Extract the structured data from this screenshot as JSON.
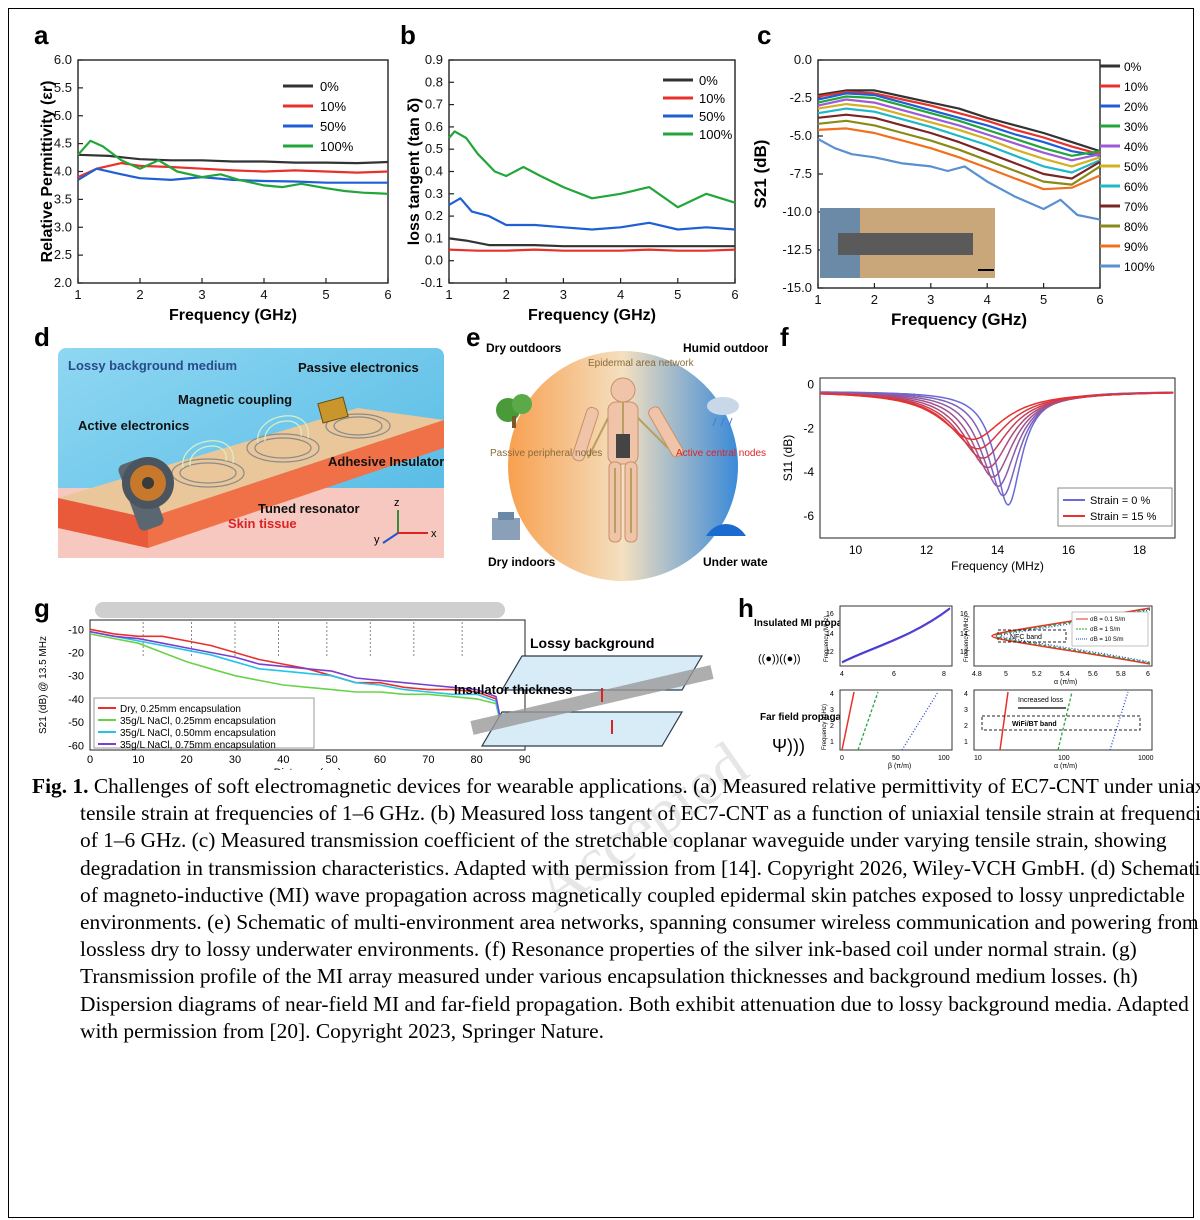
{
  "colors": {
    "black": "#333333",
    "red": "#e8312a",
    "blue": "#1e5fd6",
    "green": "#22a63a",
    "purple": "#7a3fd0"
  },
  "panels": {
    "a": {
      "label": "a"
    },
    "b": {
      "label": "b"
    },
    "c": {
      "label": "c"
    },
    "d": {
      "label": "d"
    },
    "e": {
      "label": "e"
    },
    "f": {
      "label": "f"
    },
    "g": {
      "label": "g"
    },
    "h": {
      "label": "h"
    }
  },
  "chart_data": [
    {
      "panel": "a",
      "type": "line",
      "xlabel": "Frequency (GHz)",
      "ylabel": "Relative Permittivity (εr)",
      "xlim": [
        1,
        6
      ],
      "ylim": [
        2.0,
        6.0
      ],
      "xticks": [
        "1",
        "2",
        "3",
        "4",
        "5",
        "6"
      ],
      "yticks": [
        "2.0",
        "2.5",
        "3.0",
        "3.5",
        "4.0",
        "4.5",
        "5.0",
        "5.5",
        "6.0"
      ],
      "legend": "top-right",
      "series": [
        {
          "name": "0%",
          "color": "#333333",
          "x": [
            1,
            1.5,
            2,
            2.5,
            3,
            3.5,
            4,
            4.5,
            5,
            5.5,
            6
          ],
          "y": [
            4.3,
            4.28,
            4.22,
            4.2,
            4.2,
            4.18,
            4.18,
            4.16,
            4.16,
            4.15,
            4.17
          ]
        },
        {
          "name": "10%",
          "color": "#e8312a",
          "x": [
            1,
            1.3,
            1.7,
            2,
            2.5,
            3,
            3.5,
            4,
            4.5,
            5,
            5.5,
            6
          ],
          "y": [
            3.9,
            4.05,
            4.15,
            4.1,
            4.08,
            4.05,
            4.02,
            4.0,
            4.02,
            4.0,
            3.98,
            4.0
          ]
        },
        {
          "name": "50%",
          "color": "#1e5fd6",
          "x": [
            1,
            1.3,
            1.7,
            2,
            2.5,
            3,
            3.5,
            4,
            4.5,
            5,
            5.5,
            6
          ],
          "y": [
            3.85,
            4.05,
            3.95,
            3.88,
            3.85,
            3.9,
            3.85,
            3.83,
            3.82,
            3.8,
            3.8,
            3.8
          ]
        },
        {
          "name": "100%",
          "color": "#22a63a",
          "x": [
            1,
            1.2,
            1.4,
            1.7,
            2,
            2.3,
            2.6,
            3,
            3.3,
            3.6,
            4,
            4.3,
            4.6,
            5,
            5.3,
            5.6,
            6
          ],
          "y": [
            4.3,
            4.55,
            4.45,
            4.2,
            4.05,
            4.2,
            4.0,
            3.9,
            3.95,
            3.85,
            3.75,
            3.72,
            3.78,
            3.7,
            3.65,
            3.62,
            3.6
          ]
        }
      ]
    },
    {
      "panel": "b",
      "type": "line",
      "xlabel": "Frequency (GHz)",
      "ylabel": "loss tangent (tan δ)",
      "xlim": [
        1,
        6
      ],
      "ylim": [
        -0.1,
        0.9
      ],
      "xticks": [
        "1",
        "2",
        "3",
        "4",
        "5",
        "6"
      ],
      "yticks": [
        "-0.1",
        "0.0",
        "0.1",
        "0.2",
        "0.3",
        "0.4",
        "0.5",
        "0.6",
        "0.7",
        "0.8",
        "0.9"
      ],
      "legend": "top-right",
      "series": [
        {
          "name": "0%",
          "color": "#333333",
          "x": [
            1,
            1.3,
            1.7,
            2,
            2.5,
            3,
            3.5,
            4,
            4.5,
            5,
            5.5,
            6
          ],
          "y": [
            0.1,
            0.09,
            0.07,
            0.07,
            0.07,
            0.065,
            0.065,
            0.065,
            0.065,
            0.065,
            0.065,
            0.065
          ]
        },
        {
          "name": "10%",
          "color": "#e8312a",
          "x": [
            1,
            1.5,
            2,
            2.5,
            3,
            3.5,
            4,
            4.5,
            5,
            5.5,
            6
          ],
          "y": [
            0.05,
            0.045,
            0.045,
            0.05,
            0.045,
            0.045,
            0.045,
            0.05,
            0.045,
            0.045,
            0.05
          ]
        },
        {
          "name": "50%",
          "color": "#1e5fd6",
          "x": [
            1,
            1.2,
            1.4,
            1.7,
            2,
            2.5,
            3,
            3.5,
            4,
            4.5,
            5,
            5.5,
            6
          ],
          "y": [
            0.25,
            0.28,
            0.22,
            0.2,
            0.16,
            0.16,
            0.15,
            0.14,
            0.15,
            0.17,
            0.14,
            0.15,
            0.14
          ]
        },
        {
          "name": "100%",
          "color": "#22a63a",
          "x": [
            1,
            1.1,
            1.3,
            1.5,
            1.8,
            2,
            2.3,
            2.6,
            3,
            3.5,
            4,
            4.5,
            5,
            5.5,
            6
          ],
          "y": [
            0.55,
            0.58,
            0.55,
            0.48,
            0.4,
            0.38,
            0.42,
            0.38,
            0.33,
            0.28,
            0.3,
            0.33,
            0.24,
            0.3,
            0.26
          ]
        }
      ]
    },
    {
      "panel": "c",
      "type": "line",
      "xlabel": "Frequency (GHz)",
      "ylabel": "S21 (dB)",
      "xlim": [
        1,
        6
      ],
      "ylim": [
        -15.0,
        0.0
      ],
      "xticks": [
        "1",
        "2",
        "3",
        "4",
        "5",
        "6"
      ],
      "yticks": [
        "-15.0",
        "-12.5",
        "-10.0",
        "-7.5",
        "-5.0",
        "-2.5",
        "0.0"
      ],
      "legend": "right",
      "series": [
        {
          "name": "0%",
          "color": "#333333",
          "x": [
            1,
            1.5,
            2,
            2.5,
            3,
            3.5,
            4,
            4.5,
            5,
            5.5,
            6
          ],
          "y": [
            -2.3,
            -2.0,
            -2.0,
            -2.4,
            -2.8,
            -3.2,
            -3.8,
            -4.3,
            -4.8,
            -5.4,
            -6.0
          ]
        },
        {
          "name": "10%",
          "color": "#e8312a",
          "x": [
            1,
            1.5,
            2,
            2.5,
            3,
            3.5,
            4,
            4.5,
            5,
            5.5,
            6
          ],
          "y": [
            -2.4,
            -2.1,
            -2.2,
            -2.6,
            -3.0,
            -3.5,
            -4.0,
            -4.6,
            -5.1,
            -5.7,
            -6.2
          ]
        },
        {
          "name": "20%",
          "color": "#1e5fd6",
          "x": [
            1,
            1.5,
            2,
            2.5,
            3,
            3.5,
            4,
            4.5,
            5,
            5.5,
            6
          ],
          "y": [
            -2.6,
            -2.2,
            -2.3,
            -2.8,
            -3.3,
            -3.8,
            -4.3,
            -4.9,
            -5.4,
            -6.0,
            -6.3
          ]
        },
        {
          "name": "30%",
          "color": "#22a63a",
          "x": [
            1,
            1.5,
            2,
            2.5,
            3,
            3.5,
            4,
            4.5,
            5,
            5.5,
            6
          ],
          "y": [
            -2.8,
            -2.4,
            -2.5,
            -3.0,
            -3.5,
            -4.0,
            -4.6,
            -5.2,
            -5.8,
            -6.3,
            -6.0
          ]
        },
        {
          "name": "40%",
          "color": "#a05ad8",
          "x": [
            1,
            1.5,
            2,
            2.5,
            3,
            3.5,
            4,
            4.5,
            5,
            5.5,
            6
          ],
          "y": [
            -3.0,
            -2.6,
            -2.8,
            -3.3,
            -3.8,
            -4.3,
            -4.9,
            -5.5,
            -6.1,
            -6.6,
            -6.2
          ]
        },
        {
          "name": "50%",
          "color": "#d4b020",
          "x": [
            1,
            1.5,
            2,
            2.5,
            3,
            3.5,
            4,
            4.5,
            5,
            5.5,
            6
          ],
          "y": [
            -3.2,
            -2.9,
            -3.1,
            -3.6,
            -4.1,
            -4.6,
            -5.2,
            -5.9,
            -6.5,
            -7.0,
            -6.4
          ]
        },
        {
          "name": "60%",
          "color": "#1fb8c8",
          "x": [
            1,
            1.5,
            2,
            2.5,
            3,
            3.5,
            4,
            4.5,
            5,
            5.5,
            6
          ],
          "y": [
            -3.5,
            -3.2,
            -3.4,
            -3.9,
            -4.4,
            -5.0,
            -5.6,
            -6.3,
            -7.0,
            -7.4,
            -6.6
          ]
        },
        {
          "name": "70%",
          "color": "#7a2424",
          "x": [
            1,
            1.5,
            2,
            2.5,
            3,
            3.5,
            4,
            4.5,
            5,
            5.5,
            6
          ],
          "y": [
            -3.8,
            -3.6,
            -3.8,
            -4.3,
            -4.8,
            -5.4,
            -6.1,
            -6.8,
            -7.5,
            -7.8,
            -6.7
          ]
        },
        {
          "name": "80%",
          "color": "#8a8a1a",
          "x": [
            1,
            1.5,
            2,
            2.5,
            3,
            3.5,
            4,
            4.5,
            5,
            5.5,
            6
          ],
          "y": [
            -4.2,
            -4.0,
            -4.3,
            -4.8,
            -5.3,
            -5.9,
            -6.6,
            -7.3,
            -8.0,
            -8.2,
            -7.0
          ]
        },
        {
          "name": "90%",
          "color": "#f07020",
          "x": [
            1,
            1.5,
            2,
            2.5,
            3,
            3.5,
            4,
            4.5,
            5,
            5.5,
            6
          ],
          "y": [
            -4.6,
            -4.5,
            -4.8,
            -5.3,
            -5.8,
            -6.4,
            -7.1,
            -7.8,
            -8.5,
            -8.4,
            -7.6
          ]
        },
        {
          "name": "100%",
          "color": "#5a90d0",
          "x": [
            1,
            1.3,
            1.6,
            2,
            2.5,
            3,
            3.3,
            3.6,
            4,
            4.5,
            5,
            5.3,
            5.6,
            6
          ],
          "y": [
            -5.2,
            -5.8,
            -6.2,
            -6.4,
            -6.8,
            -7.0,
            -7.3,
            -7.0,
            -8.0,
            -9.0,
            -9.8,
            -9.2,
            -10.2,
            -10.5
          ]
        }
      ]
    },
    {
      "panel": "f",
      "type": "line",
      "xlabel": "Frequency (MHz)",
      "ylabel": "S11 (dB)",
      "xlim": [
        9,
        19
      ],
      "ylim": [
        -7,
        0.3
      ],
      "xticks": [
        "10",
        "12",
        "14",
        "16",
        "18"
      ],
      "yticks": [
        "-6",
        "-4",
        "-2",
        "0"
      ],
      "legend": "bottom-right",
      "series": [
        {
          "name": "Strain = 0 %",
          "color": "#6a6ad8",
          "resonance_MHz": 14.3,
          "min_dB": -5.2
        },
        {
          "name": "Strain = 15 %",
          "color": "#e8312a",
          "resonance_MHz": 13.3,
          "min_dB": -2.2
        }
      ]
    },
    {
      "panel": "g",
      "type": "line",
      "xlabel": "Distance (cm)",
      "ylabel": "S21 (dB) @ 13.5 MHz",
      "xlim": [
        0,
        90
      ],
      "ylim": [
        -62,
        -6
      ],
      "xticks": [
        "0",
        "10",
        "20",
        "30",
        "40",
        "50",
        "60",
        "70",
        "80",
        "90"
      ],
      "yticks": [
        "-10",
        "-20",
        "-30",
        "-40",
        "-50",
        "-60"
      ],
      "legend": "bottom-left",
      "series": [
        {
          "name": "Dry, 0.25mm encapsulation",
          "color": "#e8312a",
          "x": [
            0,
            5,
            10,
            15,
            20,
            25,
            30,
            35,
            40,
            45,
            50,
            55,
            60,
            65,
            70,
            75,
            80,
            84,
            86
          ],
          "y": [
            -10,
            -12,
            -13,
            -13,
            -15,
            -17,
            -20,
            -23,
            -25,
            -27,
            -30,
            -33,
            -33,
            -35,
            -36,
            -36,
            -37,
            -40,
            -60
          ]
        },
        {
          "name": "35g/L NaCl, 0.25mm encapsulation",
          "color": "#6ad24a",
          "x": [
            0,
            5,
            10,
            15,
            20,
            25,
            30,
            35,
            40,
            45,
            50,
            55,
            60,
            65,
            70,
            75,
            80,
            84,
            86
          ],
          "y": [
            -12,
            -14,
            -16,
            -20,
            -24,
            -27,
            -30,
            -32,
            -34,
            -35,
            -36,
            -37,
            -37,
            -38,
            -38,
            -39,
            -40,
            -42,
            -60
          ]
        },
        {
          "name": "35g/L NaCl, 0.50mm encapsulation",
          "color": "#23c4e8",
          "x": [
            0,
            5,
            10,
            15,
            20,
            25,
            30,
            35,
            40,
            45,
            50,
            55,
            60,
            65,
            70,
            75,
            80,
            84,
            86
          ],
          "y": [
            -11,
            -13,
            -15,
            -17,
            -19,
            -21,
            -24,
            -27,
            -28,
            -29,
            -30,
            -33,
            -34,
            -36,
            -37,
            -38,
            -38,
            -41,
            -60
          ]
        },
        {
          "name": "35g/L NaCl, 0.75mm encapsulation",
          "color": "#7a3fd0",
          "x": [
            0,
            5,
            10,
            15,
            20,
            25,
            30,
            35,
            40,
            45,
            50,
            55,
            60,
            65,
            70,
            75,
            80,
            84,
            86
          ],
          "y": [
            -11,
            -13,
            -14,
            -16,
            -18,
            -20,
            -22,
            -25,
            -26,
            -27,
            -28,
            -31,
            -32,
            -33,
            -34,
            -35,
            -36,
            -39,
            -60
          ]
        }
      ]
    }
  ],
  "diagrams": {
    "d": {
      "labels": [
        "Lossy background medium",
        "Passive electronics",
        "Magnetic coupling",
        "Active electronics",
        "Adhesive Insulator",
        "Tuned resonator",
        "Skin tissue"
      ],
      "axes": [
        "z",
        "y",
        "x"
      ]
    },
    "e": {
      "labels": [
        "Dry outdoors",
        "Humid outdoors",
        "Epidermal area network",
        "Passive peripheral nodes",
        "Active central nodes",
        "Dry indoors",
        "Under water"
      ]
    },
    "g": {
      "labels": [
        "Lossy background",
        "Insulator thickness"
      ]
    },
    "h": {
      "row_labels": [
        "Insulated MI propagation:",
        "Far field propagation:"
      ],
      "ylabel_freq_mhz": "Frequency (MHz)",
      "ylabel_freq_ghz": "Frequency (GHz)",
      "xlabel_beta": "β (π/m)",
      "xlabel_alpha": "α (π/m)",
      "band_nfc": "NFC band",
      "band_wifi": "WiFi/BT band",
      "increased_loss": "Increased loss",
      "legend": [
        "σB = 0.1 S/m",
        "σB = 1 S/m",
        "σB = 10 S/m"
      ],
      "ticks": {
        "mi_beta_x": [
          "4",
          "6",
          "8"
        ],
        "mi_y": [
          "12",
          "14",
          "16"
        ],
        "mi_alpha_x": [
          "4.8",
          "5",
          "5.2",
          "5.4",
          "5.6",
          "5.8",
          "6"
        ],
        "ff_beta_x": [
          "0",
          "50",
          "100"
        ],
        "ff_y": [
          "1",
          "2",
          "3",
          "4"
        ],
        "ff_alpha_x": [
          "10",
          "100",
          "1000"
        ]
      }
    }
  },
  "watermark": "Accepted",
  "caption": {
    "fig_label": "Fig. 1.",
    "text": "Challenges of soft electromagnetic devices for wearable applications. (a) Measured relative permittivity of EC7-CNT under uniaxial tensile strain at frequencies of 1–6 GHz. (b) Measured loss tangent of EC7-CNT as a function of uniaxial tensile strain at frequencies of 1–6 GHz. (c) Measured transmission coefficient of the stretchable coplanar waveguide under varying tensile strain, showing degradation in transmission characteristics. Adapted with permission from [14]. Copyright 2026, Wiley-VCH GmbH. (d) Schematic of magneto-inductive (MI) wave propagation across magnetically coupled epidermal skin patches exposed to lossy unpredictable environments. (e) Schematic of multi-environment area networks, spanning consumer wireless communication and powering from lossless dry to lossy underwater environments. (f) Resonance properties of the silver ink-based coil under normal strain. (g) Transmission profile of the MI array measured under various encapsulation thicknesses and background medium losses. (h) Dispersion diagrams of near-field MI and far-field propagation. Both exhibit attenuation due to lossy background media. Adapted with permission from [20]. Copyright 2023, Springer Nature."
  }
}
